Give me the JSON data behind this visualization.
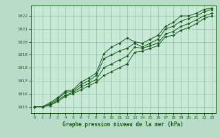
{
  "background_color": "#b8dcc8",
  "plot_bg_color": "#c8e8d8",
  "grid_color": "#99bbaa",
  "line_color": "#1a5c1a",
  "marker_color": "#1a5c1a",
  "xlabel": "Graphe pression niveau de la mer (hPa)",
  "xlim": [
    -0.5,
    23.5
  ],
  "ylim": [
    1014.5,
    1022.8
  ],
  "yticks": [
    1015,
    1016,
    1017,
    1018,
    1019,
    1020,
    1021,
    1022
  ],
  "xticks": [
    0,
    1,
    2,
    3,
    4,
    5,
    6,
    7,
    8,
    9,
    10,
    11,
    12,
    13,
    14,
    15,
    16,
    17,
    18,
    19,
    20,
    21,
    22,
    23
  ],
  "series": [
    [
      1015.0,
      1015.0,
      1015.3,
      1015.7,
      1016.2,
      1016.3,
      1016.9,
      1017.2,
      1017.6,
      1019.1,
      1019.6,
      1019.9,
      1020.3,
      1020.0,
      1019.9,
      1020.2,
      1020.5,
      1021.2,
      1021.5,
      1022.0,
      1022.0,
      1022.2,
      1022.5,
      1022.6
    ],
    [
      1015.0,
      1015.0,
      1015.2,
      1015.6,
      1016.1,
      1016.2,
      1016.7,
      1017.0,
      1017.4,
      1018.7,
      1019.0,
      1019.3,
      1019.5,
      1019.9,
      1019.6,
      1019.9,
      1020.2,
      1021.0,
      1021.2,
      1021.6,
      1021.8,
      1022.0,
      1022.3,
      1022.5
    ],
    [
      1015.0,
      1015.0,
      1015.1,
      1015.5,
      1015.9,
      1016.1,
      1016.5,
      1016.8,
      1017.1,
      1018.0,
      1018.3,
      1018.6,
      1018.9,
      1019.6,
      1019.5,
      1019.7,
      1019.9,
      1020.6,
      1020.8,
      1021.2,
      1021.4,
      1021.7,
      1022.0,
      1022.2
    ],
    [
      1015.0,
      1015.0,
      1015.1,
      1015.4,
      1015.8,
      1016.0,
      1016.3,
      1016.6,
      1016.9,
      1017.4,
      1017.7,
      1018.0,
      1018.3,
      1019.2,
      1019.3,
      1019.5,
      1019.7,
      1020.4,
      1020.5,
      1020.9,
      1021.1,
      1021.4,
      1021.8,
      1022.0
    ]
  ]
}
